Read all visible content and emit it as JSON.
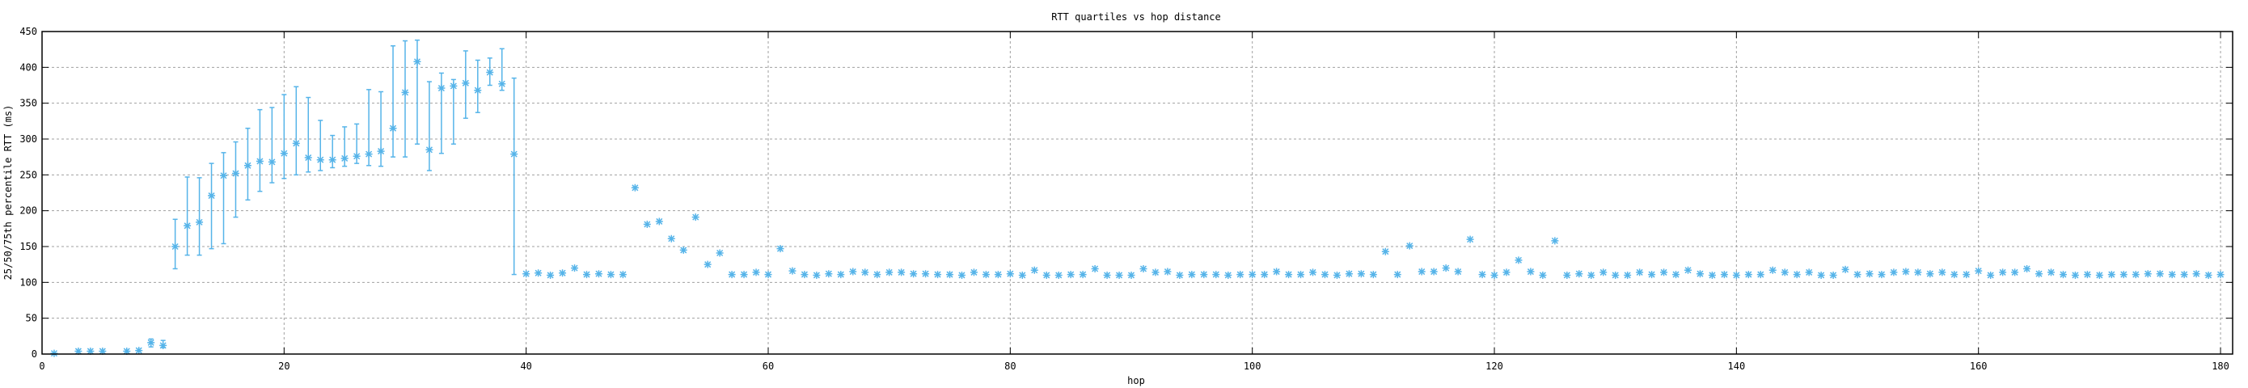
{
  "chart_data": {
    "type": "scatter",
    "title": "RTT quartiles vs hop distance",
    "xlabel": "hop",
    "ylabel": "25/50/75th percentile RTT (ms)",
    "xlim": [
      0,
      181
    ],
    "ylim": [
      0,
      450
    ],
    "xticks": [
      0,
      20,
      40,
      60,
      80,
      100,
      120,
      140,
      160,
      180
    ],
    "yticks": [
      0,
      50,
      100,
      150,
      200,
      250,
      300,
      350,
      400,
      450
    ],
    "grid": true,
    "marker": "asterisk",
    "color": "#56b4e9",
    "point_fields": [
      "hop",
      "p25",
      "p50",
      "p75"
    ],
    "points": [
      [
        1,
        null,
        1,
        null
      ],
      [
        3,
        null,
        4,
        null
      ],
      [
        4,
        null,
        4,
        null
      ],
      [
        5,
        null,
        4,
        null
      ],
      [
        7,
        null,
        4,
        null
      ],
      [
        8,
        null,
        5,
        null
      ],
      [
        9,
        10,
        16,
        21
      ],
      [
        10,
        9,
        12,
        19
      ],
      [
        11,
        119,
        150,
        188
      ],
      [
        12,
        138,
        179,
        247
      ],
      [
        13,
        138,
        184,
        246
      ],
      [
        14,
        147,
        221,
        266
      ],
      [
        15,
        154,
        249,
        281
      ],
      [
        16,
        191,
        252,
        296
      ],
      [
        17,
        215,
        263,
        315
      ],
      [
        18,
        227,
        269,
        341
      ],
      [
        19,
        239,
        268,
        344
      ],
      [
        20,
        245,
        280,
        362
      ],
      [
        21,
        250,
        294,
        373
      ],
      [
        22,
        254,
        274,
        358
      ],
      [
        23,
        256,
        271,
        326
      ],
      [
        24,
        260,
        271,
        305
      ],
      [
        25,
        262,
        273,
        317
      ],
      [
        26,
        266,
        276,
        321
      ],
      [
        27,
        263,
        279,
        369
      ],
      [
        28,
        262,
        283,
        366
      ],
      [
        29,
        275,
        315,
        430
      ],
      [
        30,
        275,
        365,
        437
      ],
      [
        31,
        293,
        408,
        438
      ],
      [
        32,
        256,
        285,
        380
      ],
      [
        33,
        280,
        371,
        392
      ],
      [
        34,
        293,
        374,
        383
      ],
      [
        35,
        329,
        378,
        423
      ],
      [
        36,
        337,
        368,
        410
      ],
      [
        37,
        375,
        393,
        413
      ],
      [
        38,
        368,
        377,
        426
      ],
      [
        39,
        111,
        279,
        385
      ],
      [
        40,
        null,
        112,
        null
      ],
      [
        41,
        null,
        113,
        null
      ],
      [
        42,
        null,
        110,
        null
      ],
      [
        43,
        null,
        113,
        null
      ],
      [
        44,
        null,
        120,
        null
      ],
      [
        45,
        null,
        111,
        null
      ],
      [
        46,
        null,
        112,
        null
      ],
      [
        47,
        null,
        111,
        null
      ],
      [
        48,
        null,
        111,
        null
      ],
      [
        49,
        null,
        232,
        null
      ],
      [
        50,
        null,
        181,
        null
      ],
      [
        51,
        null,
        185,
        null
      ],
      [
        52,
        null,
        161,
        null
      ],
      [
        53,
        null,
        145,
        null
      ],
      [
        54,
        null,
        191,
        null
      ],
      [
        55,
        null,
        125,
        null
      ],
      [
        56,
        null,
        141,
        null
      ],
      [
        57,
        null,
        111,
        null
      ],
      [
        58,
        null,
        111,
        null
      ],
      [
        59,
        null,
        114,
        null
      ],
      [
        60,
        null,
        111,
        null
      ],
      [
        61,
        null,
        147,
        null
      ],
      [
        62,
        null,
        116,
        null
      ],
      [
        63,
        null,
        111,
        null
      ],
      [
        64,
        null,
        110,
        null
      ],
      [
        65,
        null,
        112,
        null
      ],
      [
        66,
        null,
        111,
        null
      ],
      [
        67,
        null,
        115,
        null
      ],
      [
        68,
        null,
        114,
        null
      ],
      [
        69,
        null,
        111,
        null
      ],
      [
        70,
        null,
        114,
        null
      ],
      [
        71,
        null,
        114,
        null
      ],
      [
        72,
        null,
        112,
        null
      ],
      [
        73,
        null,
        112,
        null
      ],
      [
        74,
        null,
        111,
        null
      ],
      [
        75,
        null,
        111,
        null
      ],
      [
        76,
        null,
        110,
        null
      ],
      [
        77,
        null,
        114,
        null
      ],
      [
        78,
        null,
        111,
        null
      ],
      [
        79,
        null,
        111,
        null
      ],
      [
        80,
        null,
        112,
        null
      ],
      [
        81,
        null,
        110,
        null
      ],
      [
        82,
        null,
        117,
        null
      ],
      [
        83,
        null,
        110,
        null
      ],
      [
        84,
        null,
        110,
        null
      ],
      [
        85,
        null,
        111,
        null
      ],
      [
        86,
        null,
        111,
        null
      ],
      [
        87,
        null,
        119,
        null
      ],
      [
        88,
        null,
        110,
        null
      ],
      [
        89,
        null,
        110,
        null
      ],
      [
        90,
        null,
        110,
        null
      ],
      [
        91,
        null,
        119,
        null
      ],
      [
        92,
        null,
        114,
        null
      ],
      [
        93,
        null,
        115,
        null
      ],
      [
        94,
        null,
        110,
        null
      ],
      [
        95,
        null,
        111,
        null
      ],
      [
        96,
        null,
        111,
        null
      ],
      [
        97,
        null,
        111,
        null
      ],
      [
        98,
        null,
        110,
        null
      ],
      [
        99,
        null,
        111,
        null
      ],
      [
        100,
        null,
        111,
        null
      ],
      [
        101,
        null,
        111,
        null
      ],
      [
        102,
        null,
        115,
        null
      ],
      [
        103,
        null,
        111,
        null
      ],
      [
        104,
        null,
        111,
        null
      ],
      [
        105,
        null,
        114,
        null
      ],
      [
        106,
        null,
        111,
        null
      ],
      [
        107,
        null,
        110,
        null
      ],
      [
        108,
        null,
        112,
        null
      ],
      [
        109,
        null,
        112,
        null
      ],
      [
        110,
        null,
        111,
        null
      ],
      [
        111,
        null,
        143,
        null
      ],
      [
        112,
        null,
        111,
        null
      ],
      [
        113,
        null,
        151,
        null
      ],
      [
        114,
        null,
        115,
        null
      ],
      [
        115,
        null,
        115,
        null
      ],
      [
        116,
        null,
        120,
        null
      ],
      [
        117,
        null,
        115,
        null
      ],
      [
        118,
        null,
        160,
        null
      ],
      [
        119,
        null,
        111,
        null
      ],
      [
        120,
        null,
        110,
        null
      ],
      [
        121,
        null,
        114,
        null
      ],
      [
        122,
        null,
        131,
        null
      ],
      [
        123,
        null,
        115,
        null
      ],
      [
        124,
        null,
        110,
        null
      ],
      [
        125,
        null,
        158,
        null
      ],
      [
        126,
        null,
        110,
        null
      ],
      [
        127,
        null,
        112,
        null
      ],
      [
        128,
        null,
        110,
        null
      ],
      [
        129,
        null,
        114,
        null
      ],
      [
        130,
        null,
        110,
        null
      ],
      [
        131,
        null,
        110,
        null
      ],
      [
        132,
        null,
        114,
        null
      ],
      [
        133,
        null,
        111,
        null
      ],
      [
        134,
        null,
        114,
        null
      ],
      [
        135,
        null,
        111,
        null
      ],
      [
        136,
        null,
        117,
        null
      ],
      [
        137,
        null,
        112,
        null
      ],
      [
        138,
        null,
        110,
        null
      ],
      [
        139,
        null,
        111,
        null
      ],
      [
        140,
        null,
        110,
        null
      ],
      [
        141,
        null,
        111,
        null
      ],
      [
        142,
        null,
        111,
        null
      ],
      [
        143,
        null,
        117,
        null
      ],
      [
        144,
        null,
        114,
        null
      ],
      [
        145,
        null,
        111,
        null
      ],
      [
        146,
        null,
        114,
        null
      ],
      [
        147,
        null,
        110,
        null
      ],
      [
        148,
        null,
        110,
        null
      ],
      [
        149,
        null,
        118,
        null
      ],
      [
        150,
        null,
        111,
        null
      ],
      [
        151,
        null,
        112,
        null
      ],
      [
        152,
        null,
        111,
        null
      ],
      [
        153,
        null,
        114,
        null
      ],
      [
        154,
        null,
        115,
        null
      ],
      [
        155,
        null,
        114,
        null
      ],
      [
        156,
        null,
        112,
        null
      ],
      [
        157,
        null,
        114,
        null
      ],
      [
        158,
        null,
        111,
        null
      ],
      [
        159,
        null,
        111,
        null
      ],
      [
        160,
        null,
        116,
        null
      ],
      [
        161,
        null,
        110,
        null
      ],
      [
        162,
        null,
        114,
        null
      ],
      [
        163,
        null,
        114,
        null
      ],
      [
        164,
        null,
        119,
        null
      ],
      [
        165,
        null,
        112,
        null
      ],
      [
        166,
        null,
        114,
        null
      ],
      [
        167,
        null,
        111,
        null
      ],
      [
        168,
        null,
        110,
        null
      ],
      [
        169,
        null,
        111,
        null
      ],
      [
        170,
        null,
        110,
        null
      ],
      [
        171,
        null,
        111,
        null
      ],
      [
        172,
        null,
        111,
        null
      ],
      [
        173,
        null,
        111,
        null
      ],
      [
        174,
        null,
        112,
        null
      ],
      [
        175,
        null,
        112,
        null
      ],
      [
        176,
        null,
        111,
        null
      ],
      [
        177,
        null,
        111,
        null
      ],
      [
        178,
        null,
        112,
        null
      ],
      [
        179,
        null,
        110,
        null
      ],
      [
        180,
        null,
        111,
        null
      ]
    ]
  }
}
